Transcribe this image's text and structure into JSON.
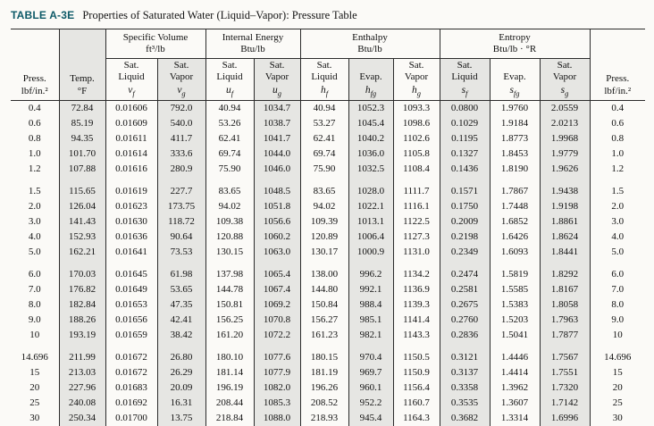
{
  "title": {
    "tag": "TABLE A-3E",
    "text": "Properties of Saturated Water (Liquid–Vapor): Pressure Table"
  },
  "colors": {
    "title_accent": "#0e5a68",
    "column_shade": "#e6e6e3",
    "rule": "#2b2b2b",
    "background": "#fbfaf7"
  },
  "table": {
    "column_keys": [
      "press",
      "temp",
      "vf",
      "vg",
      "uf",
      "ug",
      "hf",
      "hfg",
      "hg",
      "sf",
      "sfg",
      "sg",
      "press-right"
    ],
    "header": {
      "press_left": {
        "line1": "Press.",
        "line2": "lbf/in.²"
      },
      "temp": {
        "line1": "Temp.",
        "line2": "°F"
      },
      "press_right": {
        "line1": "Press.",
        "line2": "lbf/in.²"
      },
      "groups": [
        {
          "title": "Specific Volume",
          "units": "ft³/lb"
        },
        {
          "title": "Internal Energy",
          "units": "Btu/lb"
        },
        {
          "title": "Enthalpy",
          "units": "Btu/lb"
        },
        {
          "title": "Entropy",
          "units": "Btu/lb · °R"
        }
      ],
      "columns": [
        {
          "l1": "Sat.",
          "l2": "Liquid",
          "symbol": {
            "base": "v",
            "sub": "f"
          }
        },
        {
          "l1": "Sat.",
          "l2": "Vapor",
          "symbol": {
            "base": "v",
            "sub": "g"
          }
        },
        {
          "l1": "Sat.",
          "l2": "Liquid",
          "symbol": {
            "base": "u",
            "sub": "f"
          }
        },
        {
          "l1": "Sat.",
          "l2": "Vapor",
          "symbol": {
            "base": "u",
            "sub": "g"
          }
        },
        {
          "l1": "Sat.",
          "l2": "Liquid",
          "symbol": {
            "base": "h",
            "sub": "f"
          }
        },
        {
          "l1": "",
          "l2": "Evap.",
          "symbol": {
            "base": "h",
            "sub": "fg"
          }
        },
        {
          "l1": "Sat.",
          "l2": "Vapor",
          "symbol": {
            "base": "h",
            "sub": "g"
          }
        },
        {
          "l1": "Sat.",
          "l2": "Liquid",
          "symbol": {
            "base": "s",
            "sub": "f"
          }
        },
        {
          "l1": "",
          "l2": "Evap.",
          "symbol": {
            "base": "s",
            "sub": "fg"
          }
        },
        {
          "l1": "Sat.",
          "l2": "Vapor",
          "symbol": {
            "base": "s",
            "sub": "g"
          }
        }
      ]
    },
    "blocks": [
      {
        "rows": [
          [
            "0.4",
            "72.84",
            "0.01606",
            "792.0",
            "40.94",
            "1034.7",
            "40.94",
            "1052.3",
            "1093.3",
            "0.0800",
            "1.9760",
            "2.0559",
            "0.4"
          ],
          [
            "0.6",
            "85.19",
            "0.01609",
            "540.0",
            "53.26",
            "1038.7",
            "53.27",
            "1045.4",
            "1098.6",
            "0.1029",
            "1.9184",
            "2.0213",
            "0.6"
          ],
          [
            "0.8",
            "94.35",
            "0.01611",
            "411.7",
            "62.41",
            "1041.7",
            "62.41",
            "1040.2",
            "1102.6",
            "0.1195",
            "1.8773",
            "1.9968",
            "0.8"
          ],
          [
            "1.0",
            "101.70",
            "0.01614",
            "333.6",
            "69.74",
            "1044.0",
            "69.74",
            "1036.0",
            "1105.8",
            "0.1327",
            "1.8453",
            "1.9779",
            "1.0"
          ],
          [
            "1.2",
            "107.88",
            "0.01616",
            "280.9",
            "75.90",
            "1046.0",
            "75.90",
            "1032.5",
            "1108.4",
            "0.1436",
            "1.8190",
            "1.9626",
            "1.2"
          ]
        ]
      },
      {
        "rows": [
          [
            "1.5",
            "115.65",
            "0.01619",
            "227.7",
            "83.65",
            "1048.5",
            "83.65",
            "1028.0",
            "1111.7",
            "0.1571",
            "1.7867",
            "1.9438",
            "1.5"
          ],
          [
            "2.0",
            "126.04",
            "0.01623",
            "173.75",
            "94.02",
            "1051.8",
            "94.02",
            "1022.1",
            "1116.1",
            "0.1750",
            "1.7448",
            "1.9198",
            "2.0"
          ],
          [
            "3.0",
            "141.43",
            "0.01630",
            "118.72",
            "109.38",
            "1056.6",
            "109.39",
            "1013.1",
            "1122.5",
            "0.2009",
            "1.6852",
            "1.8861",
            "3.0"
          ],
          [
            "4.0",
            "152.93",
            "0.01636",
            "90.64",
            "120.88",
            "1060.2",
            "120.89",
            "1006.4",
            "1127.3",
            "0.2198",
            "1.6426",
            "1.8624",
            "4.0"
          ],
          [
            "5.0",
            "162.21",
            "0.01641",
            "73.53",
            "130.15",
            "1063.0",
            "130.17",
            "1000.9",
            "1131.0",
            "0.2349",
            "1.6093",
            "1.8441",
            "5.0"
          ]
        ]
      },
      {
        "rows": [
          [
            "6.0",
            "170.03",
            "0.01645",
            "61.98",
            "137.98",
            "1065.4",
            "138.00",
            "996.2",
            "1134.2",
            "0.2474",
            "1.5819",
            "1.8292",
            "6.0"
          ],
          [
            "7.0",
            "176.82",
            "0.01649",
            "53.65",
            "144.78",
            "1067.4",
            "144.80",
            "992.1",
            "1136.9",
            "0.2581",
            "1.5585",
            "1.8167",
            "7.0"
          ],
          [
            "8.0",
            "182.84",
            "0.01653",
            "47.35",
            "150.81",
            "1069.2",
            "150.84",
            "988.4",
            "1139.3",
            "0.2675",
            "1.5383",
            "1.8058",
            "8.0"
          ],
          [
            "9.0",
            "188.26",
            "0.01656",
            "42.41",
            "156.25",
            "1070.8",
            "156.27",
            "985.1",
            "1141.4",
            "0.2760",
            "1.5203",
            "1.7963",
            "9.0"
          ],
          [
            "10",
            "193.19",
            "0.01659",
            "38.42",
            "161.20",
            "1072.2",
            "161.23",
            "982.1",
            "1143.3",
            "0.2836",
            "1.5041",
            "1.7877",
            "10"
          ]
        ]
      },
      {
        "rows": [
          [
            "14.696",
            "211.99",
            "0.01672",
            "26.80",
            "180.10",
            "1077.6",
            "180.15",
            "970.4",
            "1150.5",
            "0.3121",
            "1.4446",
            "1.7567",
            "14.696"
          ],
          [
            "15",
            "213.03",
            "0.01672",
            "26.29",
            "181.14",
            "1077.9",
            "181.19",
            "969.7",
            "1150.9",
            "0.3137",
            "1.4414",
            "1.7551",
            "15"
          ],
          [
            "20",
            "227.96",
            "0.01683",
            "20.09",
            "196.19",
            "1082.0",
            "196.26",
            "960.1",
            "1156.4",
            "0.3358",
            "1.3962",
            "1.7320",
            "20"
          ],
          [
            "25",
            "240.08",
            "0.01692",
            "16.31",
            "208.44",
            "1085.3",
            "208.52",
            "952.2",
            "1160.7",
            "0.3535",
            "1.3607",
            "1.7142",
            "25"
          ],
          [
            "30",
            "250.34",
            "0.01700",
            "13.75",
            "218.84",
            "1088.0",
            "218.93",
            "945.4",
            "1164.3",
            "0.3682",
            "1.3314",
            "1.6996",
            "30"
          ]
        ]
      }
    ]
  }
}
